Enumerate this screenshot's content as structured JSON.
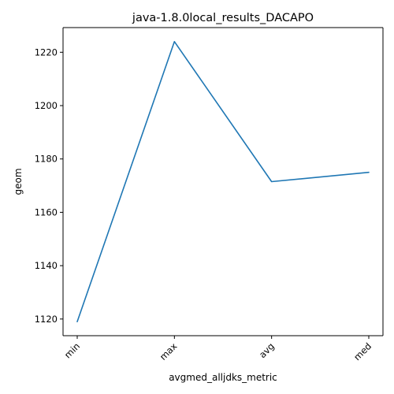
{
  "chart_data": {
    "type": "line",
    "title": "java-1.8.0local_results_DACAPO",
    "xlabel": "avgmed_alljdks_metric",
    "ylabel": "geom",
    "categories": [
      "min",
      "max",
      "avg",
      "med"
    ],
    "series": [
      {
        "values": [
          1119,
          1224,
          1171.5,
          1175
        ],
        "color": "#1f77b4"
      }
    ],
    "ylim": [
      1113.75,
      1229.25
    ],
    "yticks": [
      1120,
      1140,
      1160,
      1180,
      1200,
      1220
    ],
    "grid": false,
    "legend": "none"
  }
}
